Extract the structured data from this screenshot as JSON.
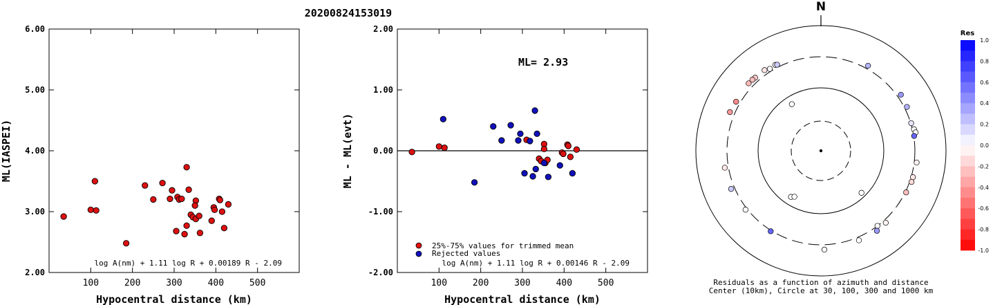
{
  "figure_title": "20200824153019",
  "chart_data": [
    {
      "type": "scatter",
      "ylabel": "ML(IASPEI)",
      "xlabel": "Hypocentral distance (km)",
      "xticks": [
        100,
        200,
        300,
        400,
        500
      ],
      "yticks": [
        "2.00",
        "3.00",
        "4.00",
        "5.00",
        "6.00"
      ],
      "xlim": [
        0,
        600
      ],
      "ylim": [
        2.0,
        6.0
      ],
      "formula": "log A(nm) + 1.11 log R + 0.00189 R - 2.09",
      "color": "#dd1111",
      "points": [
        [
          35,
          2.92
        ],
        [
          100,
          3.03
        ],
        [
          110,
          3.5
        ],
        [
          113,
          3.02
        ],
        [
          185,
          2.48
        ],
        [
          230,
          3.43
        ],
        [
          250,
          3.2
        ],
        [
          272,
          3.47
        ],
        [
          290,
          3.21
        ],
        [
          295,
          3.35
        ],
        [
          308,
          3.24
        ],
        [
          312,
          3.2
        ],
        [
          318,
          3.21
        ],
        [
          305,
          2.68
        ],
        [
          325,
          2.63
        ],
        [
          330,
          2.77
        ],
        [
          330,
          3.73
        ],
        [
          335,
          3.36
        ],
        [
          340,
          2.95
        ],
        [
          345,
          2.91
        ],
        [
          352,
          3.18
        ],
        [
          350,
          3.1
        ],
        [
          352,
          2.88
        ],
        [
          360,
          2.93
        ],
        [
          362,
          2.65
        ],
        [
          390,
          2.85
        ],
        [
          395,
          3.07
        ],
        [
          397,
          3.03
        ],
        [
          408,
          3.21
        ],
        [
          410,
          3.19
        ],
        [
          415,
          3.0
        ],
        [
          420,
          2.73
        ],
        [
          430,
          3.12
        ]
      ]
    },
    {
      "type": "scatter",
      "ylabel": "ML - ML(evt)",
      "xlabel": "Hypocentral distance (km)",
      "xticks": [
        100,
        200,
        300,
        400,
        500
      ],
      "yticks": [
        "-2.00",
        "-1.00",
        "0.00",
        "1.00",
        "2.00"
      ],
      "xlim": [
        0,
        600
      ],
      "ylim": [
        -2.0,
        2.0
      ],
      "ml_label": "ML= 2.93",
      "formula": "log A(nm) + 1.11 log R + 0.00146 R - 2.09",
      "legend": [
        {
          "label": "25%-75% values for trimmed mean",
          "color": "#dd1111"
        },
        {
          "label": "Rejected values",
          "color": "#1111bb"
        }
      ],
      "series": [
        {
          "name": "25%-75% values for trimmed mean",
          "color": "#dd1111",
          "points": [
            [
              35,
              -0.02
            ],
            [
              100,
              0.07
            ],
            [
              113,
              0.05
            ],
            [
              310,
              0.18
            ],
            [
              340,
              -0.13
            ],
            [
              352,
              0.11
            ],
            [
              352,
              0.03
            ],
            [
              345,
              -0.17
            ],
            [
              355,
              -0.2
            ],
            [
              360,
              -0.15
            ],
            [
              395,
              -0.03
            ],
            [
              398,
              -0.05
            ],
            [
              408,
              0.1
            ],
            [
              410,
              0.08
            ],
            [
              415,
              -0.1
            ],
            [
              430,
              0.02
            ]
          ]
        },
        {
          "name": "Rejected values",
          "color": "#1111bb",
          "points": [
            [
              110,
              0.52
            ],
            [
              185,
              -0.52
            ],
            [
              230,
              0.4
            ],
            [
              250,
              0.17
            ],
            [
              272,
              0.42
            ],
            [
              290,
              0.17
            ],
            [
              295,
              0.28
            ],
            [
              305,
              -0.37
            ],
            [
              318,
              0.16
            ],
            [
              325,
              -0.42
            ],
            [
              330,
              0.66
            ],
            [
              332,
              -0.3
            ],
            [
              335,
              0.28
            ],
            [
              362,
              -0.43
            ],
            [
              352,
              -0.2
            ],
            [
              390,
              -0.24
            ],
            [
              420,
              -0.37
            ]
          ]
        }
      ]
    },
    {
      "type": "polar-scatter",
      "north_label": "N",
      "caption_line1": "Residuals as a function of azimuth and distance",
      "caption_line2": "Center (10km), Circle at 30, 100, 300 and 1000 km",
      "colorbar_title": "Res",
      "colorbar_ticks": [
        "1.0",
        "0.8",
        "0.6",
        "0.4",
        "0.2",
        "0.0",
        "-0.2",
        "-0.4",
        "-0.6",
        "-0.8",
        "-1.0"
      ],
      "points_note": "azimuth (deg clockwise from N), distance (km), residual",
      "points": [
        [
          328,
          330,
          0.0
        ],
        [
          332,
          340,
          -0.05
        ],
        [
          325,
          355,
          -0.1
        ],
        [
          318,
          355,
          -0.2
        ],
        [
          316,
          360,
          -0.25
        ],
        [
          313,
          362,
          -0.28
        ],
        [
          300,
          350,
          -0.45
        ],
        [
          293,
          362,
          -0.4
        ],
        [
          333,
          330,
          0.2
        ],
        [
          29,
          340,
          0.3
        ],
        [
          55,
          345,
          0.4
        ],
        [
          63,
          330,
          0.3
        ],
        [
          73,
          305,
          0.1
        ],
        [
          77,
          318,
          0.0
        ],
        [
          79,
          330,
          0.0
        ],
        [
          81,
          305,
          0.6
        ],
        [
          97,
          330,
          -0.05
        ],
        [
          106,
          320,
          -0.1
        ],
        [
          109,
          322,
          -0.15
        ],
        [
          116,
          310,
          -0.25
        ],
        [
          143,
          300,
          0.0
        ],
        [
          138,
          335,
          -0.05
        ],
        [
          145,
          345,
          0.4
        ],
        [
          157,
          340,
          0.0
        ],
        [
          178,
          362,
          0.0
        ],
        [
          212,
          310,
          0.6
        ],
        [
          232,
          320,
          0.0
        ],
        [
          247,
          345,
          0.2
        ],
        [
          260,
          345,
          -0.1
        ],
        [
          213,
          75,
          0.0
        ],
        [
          210,
          70,
          0.0
        ],
        [
          328,
          75,
          0.0
        ],
        [
          136,
          85,
          0.0
        ]
      ]
    }
  ]
}
